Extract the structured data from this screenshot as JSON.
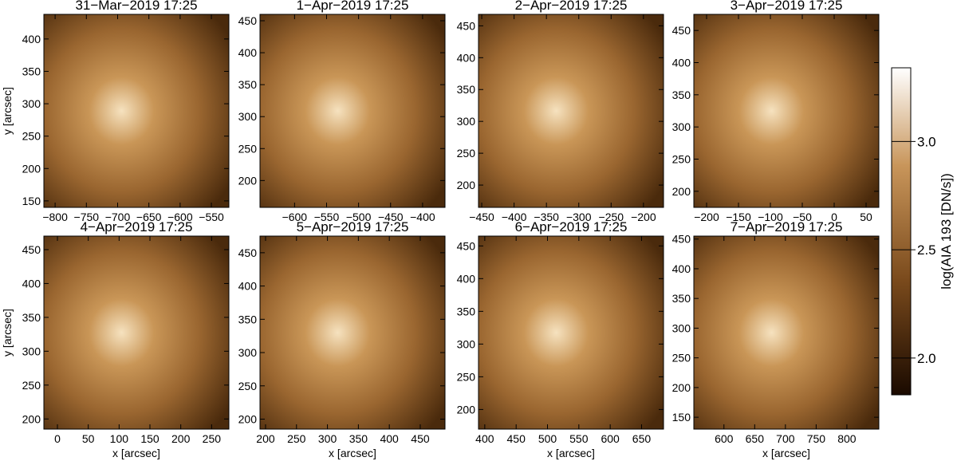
{
  "chart_data": [
    {
      "type": "image",
      "title": "31−Mar−2019 17:25",
      "ylabel": "y [arcsec]",
      "xlim": [
        -818,
        -522
      ],
      "xticks": [
        {
          "value": -800,
          "label": "−800"
        },
        {
          "value": -750,
          "label": "−750"
        },
        {
          "value": -700,
          "label": "−700"
        },
        {
          "value": -650,
          "label": "−650"
        },
        {
          "value": -600,
          "label": "−600"
        },
        {
          "value": -550,
          "label": "−550"
        }
      ],
      "ylim": [
        140,
        438
      ],
      "yticks": [
        150,
        200,
        250,
        300,
        350,
        400
      ]
    },
    {
      "type": "image",
      "title": "1−Apr−2019 17:25",
      "xlim": [
        -654,
        -365
      ],
      "xticks": [
        {
          "value": -600,
          "label": "−600"
        },
        {
          "value": -550,
          "label": "−550"
        },
        {
          "value": -500,
          "label": "−500"
        },
        {
          "value": -450,
          "label": "−450"
        },
        {
          "value": -400,
          "label": "−400"
        }
      ],
      "ylim": [
        158,
        460
      ],
      "yticks": [
        200,
        250,
        300,
        350,
        400,
        450
      ]
    },
    {
      "type": "image",
      "title": "2−Apr−2019 17:25",
      "xlim": [
        -455,
        -169
      ],
      "xticks": [
        {
          "value": -450,
          "label": "−450"
        },
        {
          "value": -400,
          "label": "−400"
        },
        {
          "value": -350,
          "label": "−350"
        },
        {
          "value": -300,
          "label": "−300"
        },
        {
          "value": -250,
          "label": "−250"
        },
        {
          "value": -200,
          "label": "−200"
        }
      ],
      "ylim": [
        165,
        468
      ],
      "yticks": [
        200,
        250,
        300,
        350,
        400,
        450
      ]
    },
    {
      "type": "image",
      "title": "3−Apr−2019 17:25",
      "xlim": [
        -220,
        70
      ],
      "xticks": [
        {
          "value": -200,
          "label": "−200"
        },
        {
          "value": -150,
          "label": "−150"
        },
        {
          "value": -100,
          "label": "−100"
        },
        {
          "value": -50,
          "label": "−50"
        },
        0,
        50
      ],
      "ylim": [
        175,
        475
      ],
      "yticks": [
        200,
        250,
        300,
        350,
        400,
        450
      ]
    },
    {
      "type": "image",
      "title": "4−Apr−2019 17:25",
      "xlabel": "x [arcsec]",
      "ylabel": "y [arcsec]",
      "xlim": [
        -22,
        278
      ],
      "xticks": [
        0,
        50,
        100,
        150,
        200,
        250
      ],
      "ylim": [
        185,
        470
      ],
      "yticks": [
        200,
        250,
        300,
        350,
        400,
        450
      ]
    },
    {
      "type": "image",
      "title": "5−Apr−2019 17:25",
      "xlabel": "x [arcsec]",
      "xlim": [
        191,
        490
      ],
      "xticks": [
        200,
        250,
        300,
        350,
        400,
        450
      ],
      "ylim": [
        185,
        475
      ],
      "yticks": [
        200,
        250,
        300,
        350,
        400,
        450
      ]
    },
    {
      "type": "image",
      "title": "6−Apr−2019 17:25",
      "xlabel": "x [arcsec]",
      "xlim": [
        390,
        685
      ],
      "xticks": [
        400,
        450,
        500,
        550,
        600,
        650
      ],
      "ylim": [
        170,
        465
      ],
      "yticks": [
        200,
        250,
        300,
        350,
        400,
        450
      ]
    },
    {
      "type": "image",
      "title": "7−Apr−2019 17:25",
      "xlabel": "x [arcsec]",
      "xlim": [
        551,
        852
      ],
      "xticks": [
        600,
        650,
        700,
        750,
        800
      ],
      "ylim": [
        130,
        455
      ],
      "yticks": [
        150,
        200,
        250,
        300,
        350,
        400,
        450
      ]
    }
  ],
  "colorbar": {
    "label": "log(AIA 193 [DN/s])",
    "lim": [
      1.83,
      3.34
    ],
    "ticks": [
      {
        "value": 2.0,
        "label": "2.0"
      },
      {
        "value": 2.5,
        "label": "2.5"
      },
      {
        "value": 3.0,
        "label": "3.0"
      }
    ]
  }
}
